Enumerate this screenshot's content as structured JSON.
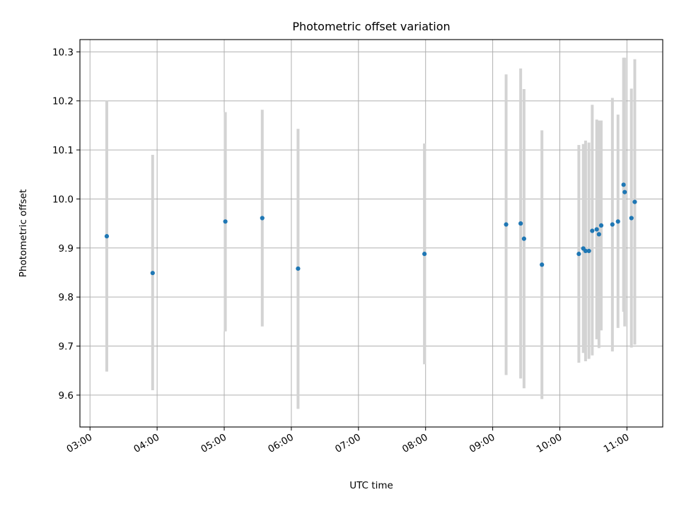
{
  "chart_data": {
    "type": "scatter",
    "title": "Photometric offset variation",
    "xlabel": "UTC time",
    "ylabel": "Photometric offset",
    "grid": true,
    "xlim": [
      "02:51",
      "11:32"
    ],
    "ylim": [
      9.535,
      10.325
    ],
    "xticks": [
      "03:00",
      "04:00",
      "05:00",
      "06:00",
      "07:00",
      "08:00",
      "09:00",
      "10:00",
      "11:00"
    ],
    "yticks": [
      "9.6",
      "9.7",
      "9.8",
      "9.9",
      "10.0",
      "10.1",
      "10.2",
      "10.3"
    ],
    "colors": {
      "point": "#1f77b4",
      "errorbar": "#d3d3d3",
      "grid": "#b0b0b0"
    },
    "series": [
      {
        "points": [
          {
            "x": "03:15",
            "y": 9.924,
            "ylo": 9.648,
            "yhi": 10.2
          },
          {
            "x": "03:56",
            "y": 9.849,
            "ylo": 9.61,
            "yhi": 10.09
          },
          {
            "x": "05:01",
            "y": 9.954,
            "ylo": 9.73,
            "yhi": 10.177
          },
          {
            "x": "05:34",
            "y": 9.961,
            "ylo": 9.74,
            "yhi": 10.182
          },
          {
            "x": "06:06",
            "y": 9.858,
            "ylo": 9.572,
            "yhi": 10.143
          },
          {
            "x": "07:59",
            "y": 9.888,
            "ylo": 9.663,
            "yhi": 10.113
          },
          {
            "x": "09:12",
            "y": 9.948,
            "ylo": 9.641,
            "yhi": 10.254
          },
          {
            "x": "09:25",
            "y": 9.95,
            "ylo": 9.634,
            "yhi": 10.266
          },
          {
            "x": "09:28",
            "y": 9.919,
            "ylo": 9.614,
            "yhi": 10.224
          },
          {
            "x": "09:44",
            "y": 9.866,
            "ylo": 9.592,
            "yhi": 10.14
          },
          {
            "x": "10:17",
            "y": 9.888,
            "ylo": 9.666,
            "yhi": 10.11
          },
          {
            "x": "10:21",
            "y": 9.899,
            "ylo": 9.686,
            "yhi": 10.112
          },
          {
            "x": "10:23",
            "y": 9.894,
            "ylo": 9.669,
            "yhi": 10.119
          },
          {
            "x": "10:26",
            "y": 9.894,
            "ylo": 9.674,
            "yhi": 10.115
          },
          {
            "x": "10:29",
            "y": 9.935,
            "ylo": 9.681,
            "yhi": 10.192
          },
          {
            "x": "10:33",
            "y": 9.938,
            "ylo": 9.714,
            "yhi": 10.162
          },
          {
            "x": "10:35",
            "y": 9.928,
            "ylo": 9.696,
            "yhi": 10.16
          },
          {
            "x": "10:37",
            "y": 9.946,
            "ylo": 9.732,
            "yhi": 10.16
          },
          {
            "x": "10:47",
            "y": 9.948,
            "ylo": 9.689,
            "yhi": 10.206
          },
          {
            "x": "10:52",
            "y": 9.954,
            "ylo": 9.737,
            "yhi": 10.172
          },
          {
            "x": "10:57",
            "y": 10.029,
            "ylo": 9.77,
            "yhi": 10.288
          },
          {
            "x": "10:58",
            "y": 10.014,
            "ylo": 9.74,
            "yhi": 10.288
          },
          {
            "x": "11:04",
            "y": 9.961,
            "ylo": 9.697,
            "yhi": 10.225
          },
          {
            "x": "11:07",
            "y": 9.994,
            "ylo": 9.703,
            "yhi": 10.285
          }
        ]
      }
    ]
  }
}
